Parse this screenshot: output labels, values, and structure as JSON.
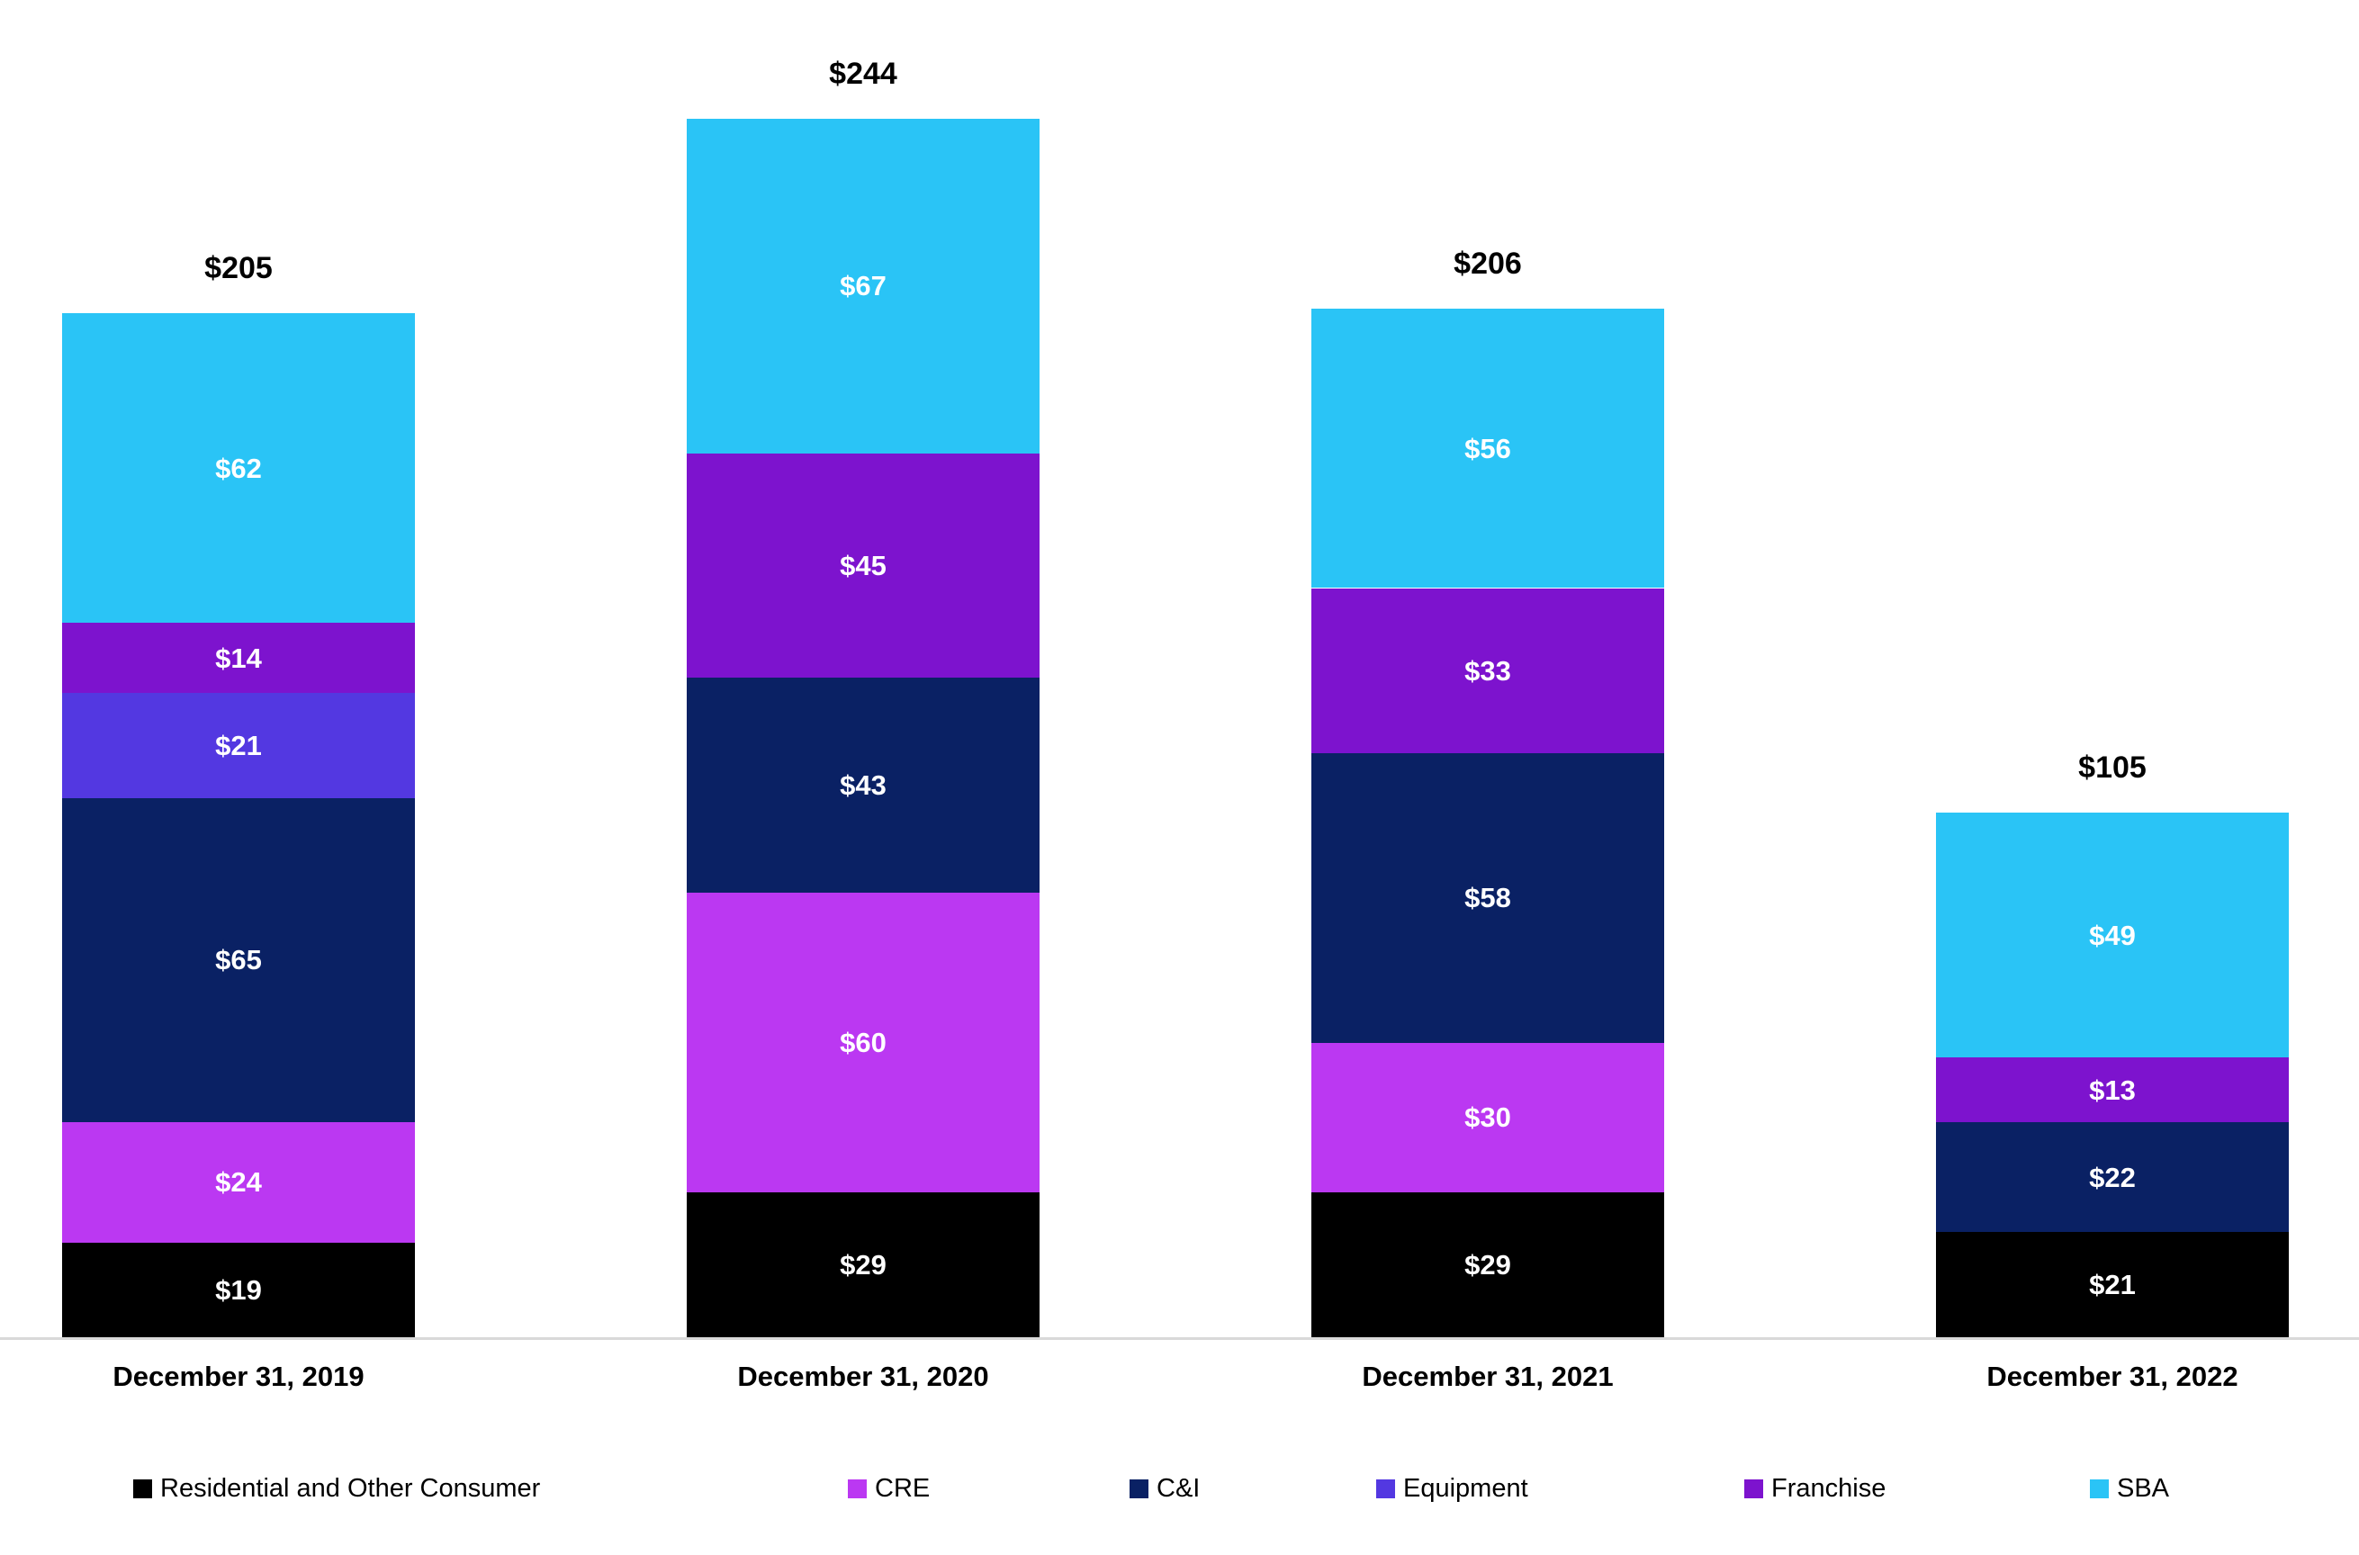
{
  "chart_data": {
    "type": "bar",
    "stacked": true,
    "title": "",
    "xlabel": "",
    "ylabel": "",
    "value_prefix": "$",
    "grid": false,
    "legend_position": "bottom",
    "axis_line_color": "#d9d9d9",
    "categories": [
      "December 31, 2019",
      "December 31, 2020",
      "December 31, 2021",
      "December 31, 2022"
    ],
    "series": [
      {
        "name": "Residential and Other Consumer",
        "color": "#000000",
        "values": [
          19,
          29,
          29,
          21
        ]
      },
      {
        "name": "CRE",
        "color": "#bb38f2",
        "values": [
          24,
          60,
          30,
          0
        ]
      },
      {
        "name": "C&I",
        "color": "#0a2164",
        "values": [
          65,
          43,
          58,
          22
        ]
      },
      {
        "name": "Equipment",
        "color": "#5338e1",
        "values": [
          21,
          0,
          0,
          0
        ]
      },
      {
        "name": "Franchise",
        "color": "#7d13ce",
        "values": [
          14,
          45,
          33,
          13
        ]
      },
      {
        "name": "SBA",
        "color": "#2ac4f6",
        "values": [
          62,
          67,
          56,
          49
        ]
      }
    ],
    "totals": [
      205,
      244,
      206,
      105
    ],
    "ylim": [
      0,
      260
    ]
  }
}
